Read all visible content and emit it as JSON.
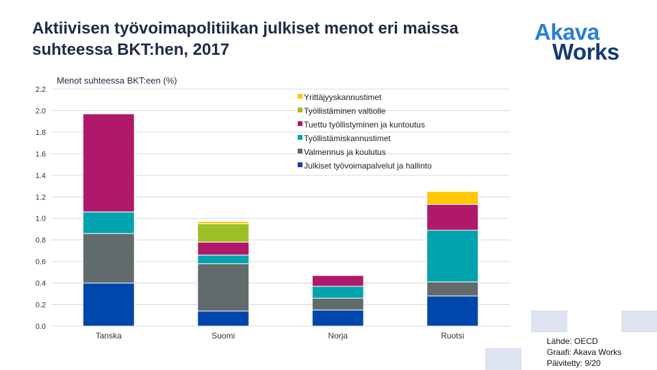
{
  "title": "Aktiivisen työvoimapolitiikan julkiset menot eri maissa suhteessa BKT:hen, 2017",
  "logo": {
    "line1": "Akava",
    "line2": "Works"
  },
  "source": {
    "line1": "Lähde: OECD",
    "line2": "Graafi: Akava Works",
    "line3": "Päivitetty: 9/20"
  },
  "colors": {
    "deco": "#dde3f0"
  },
  "chart_data": {
    "type": "bar",
    "stacked": true,
    "ylabel": "Menot suhteessa BKT:een (%)",
    "ylim": [
      0,
      2.2
    ],
    "yticks": [
      "0.0",
      "0.2",
      "0.4",
      "0.6",
      "0.8",
      "1.0",
      "1.2",
      "1.4",
      "1.6",
      "1.8",
      "2.0",
      "2.2"
    ],
    "grid": true,
    "legend_position": "top-right",
    "categories": [
      "Tanska",
      "Suomi",
      "Norja",
      "Ruotsi"
    ],
    "series": [
      {
        "name": "Julkiset työvoimapalvelut ja hallinto",
        "color": "#0047ab",
        "values": [
          0.4,
          0.14,
          0.15,
          0.28
        ]
      },
      {
        "name": "Valmennus ja koulutus",
        "color": "#626b6b",
        "values": [
          0.46,
          0.44,
          0.11,
          0.13
        ]
      },
      {
        "name": "Työllistämiskannustimet",
        "color": "#00a3ad",
        "values": [
          0.2,
          0.08,
          0.11,
          0.48
        ]
      },
      {
        "name": "Tuettu työllistyminen ja kuntoutus",
        "color": "#b0196a",
        "values": [
          0.91,
          0.12,
          0.1,
          0.24
        ]
      },
      {
        "name": "Työllistäminen valtiolle",
        "color": "#9dbe25",
        "values": [
          0.0,
          0.17,
          0.0,
          0.0
        ]
      },
      {
        "name": "Yrittäjyyskannustimet",
        "color": "#ffc800",
        "values": [
          0.0,
          0.02,
          0.0,
          0.12
        ]
      }
    ]
  }
}
